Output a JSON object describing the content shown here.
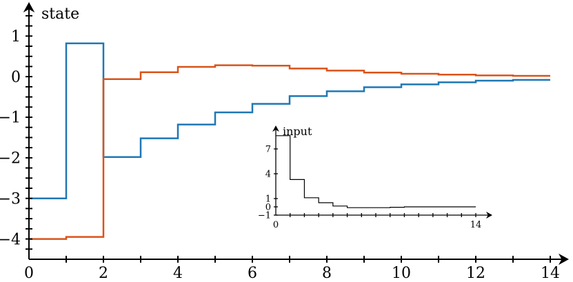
{
  "chart_data": [
    {
      "type": "line",
      "step": "post",
      "ylabel": "state",
      "xlim": [
        0,
        14
      ],
      "ylim": [
        -4.5,
        1.6
      ],
      "xticks": [
        "0",
        "2",
        "4",
        "6",
        "8",
        "10",
        "12",
        "14"
      ],
      "yticks": [
        "1",
        "0",
        "−1",
        "−2",
        "−3",
        "−4"
      ],
      "grid": false,
      "x": [
        0,
        1,
        2,
        3,
        4,
        5,
        6,
        7,
        8,
        9,
        10,
        11,
        12,
        13,
        14
      ],
      "series": [
        {
          "color": "#1f77b4",
          "values": [
            -3.0,
            0.82,
            -1.98,
            -1.52,
            -1.18,
            -0.88,
            -0.67,
            -0.48,
            -0.36,
            -0.26,
            -0.19,
            -0.14,
            -0.1,
            -0.08,
            -0.08
          ]
        },
        {
          "color": "#d95319",
          "values": [
            -4.0,
            -3.95,
            -0.06,
            0.11,
            0.24,
            0.28,
            0.27,
            0.2,
            0.15,
            0.1,
            0.07,
            0.05,
            0.03,
            0.02,
            0.02
          ]
        }
      ]
    },
    {
      "type": "line",
      "step": "post",
      "ylabel": "input",
      "xlim": [
        0,
        14
      ],
      "ylim": [
        -1,
        9
      ],
      "xticks": [
        "0",
        "14"
      ],
      "yticks": [
        "7",
        "4",
        "1",
        "0",
        "−1"
      ],
      "grid": false,
      "x": [
        0,
        1,
        2,
        3,
        4,
        5,
        6,
        7,
        8,
        9,
        10,
        11,
        12,
        13,
        14
      ],
      "series": [
        {
          "color": "#000000",
          "values": [
            8.6,
            3.3,
            1.1,
            0.5,
            0.1,
            -0.1,
            -0.1,
            -0.1,
            -0.05,
            0.0,
            0.0,
            0.0,
            0.0,
            0.0,
            0.0
          ]
        }
      ]
    }
  ]
}
